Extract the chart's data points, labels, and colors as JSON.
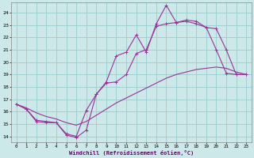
{
  "title": "",
  "xlabel": "Windchill (Refroidissement éolien,°C)",
  "bg_color": "#cce8e8",
  "grid_color": "#99cccc",
  "line_color": "#993399",
  "xlim": [
    -0.5,
    23.5
  ],
  "ylim": [
    13.5,
    24.8
  ],
  "yticks": [
    14,
    15,
    16,
    17,
    18,
    19,
    20,
    21,
    22,
    23,
    24
  ],
  "xticks": [
    0,
    1,
    2,
    3,
    4,
    5,
    6,
    7,
    8,
    9,
    10,
    11,
    12,
    13,
    14,
    15,
    16,
    17,
    18,
    19,
    20,
    21,
    22,
    23
  ],
  "line1_x": [
    0,
    1,
    2,
    3,
    4,
    5,
    6,
    7,
    8,
    9,
    10,
    11,
    12,
    13,
    14,
    15,
    16,
    17,
    18,
    19,
    20,
    21,
    22,
    23
  ],
  "line1_y": [
    16.6,
    16.2,
    15.2,
    15.1,
    15.1,
    14.1,
    13.9,
    14.5,
    17.4,
    18.4,
    20.5,
    20.8,
    22.2,
    20.8,
    23.1,
    24.6,
    23.2,
    23.4,
    23.3,
    22.8,
    21.0,
    19.1,
    19.0,
    19.0
  ],
  "line2_x": [
    0,
    1,
    2,
    3,
    4,
    5,
    6,
    7,
    8,
    9,
    10,
    11,
    12,
    13,
    14,
    15,
    16,
    17,
    18,
    19,
    20,
    21,
    22,
    23
  ],
  "line2_y": [
    16.6,
    16.2,
    15.3,
    15.2,
    15.1,
    14.2,
    14.0,
    16.1,
    17.4,
    18.3,
    18.4,
    19.0,
    20.7,
    21.0,
    22.9,
    23.1,
    23.2,
    23.3,
    23.1,
    22.8,
    22.7,
    21.0,
    19.0,
    19.0
  ],
  "line3_x": [
    0,
    1,
    2,
    3,
    4,
    5,
    6,
    7,
    8,
    9,
    10,
    11,
    12,
    13,
    14,
    15,
    16,
    17,
    18,
    19,
    20,
    21,
    22,
    23
  ],
  "line3_y": [
    16.6,
    16.3,
    15.9,
    15.6,
    15.4,
    15.1,
    14.9,
    15.2,
    15.7,
    16.2,
    16.7,
    17.1,
    17.5,
    17.9,
    18.3,
    18.7,
    19.0,
    19.2,
    19.4,
    19.5,
    19.6,
    19.5,
    19.2,
    19.0
  ]
}
